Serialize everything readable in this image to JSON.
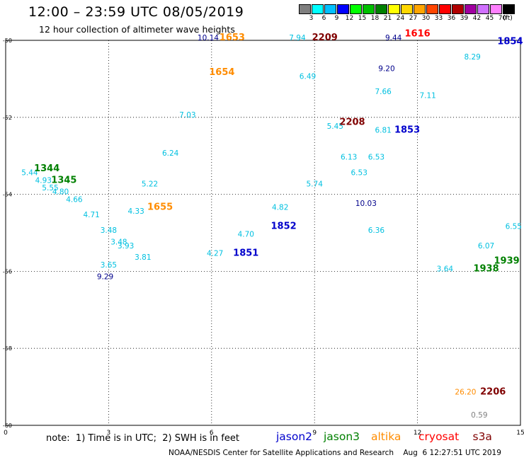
{
  "header": {
    "title": "12:00 – 23:59 UTC 08/05/2019",
    "subtitle": "12 hour collection of altimeter wave heights"
  },
  "scale": {
    "unit": "(ft)",
    "bins": [
      {
        "label": "3",
        "color": "#7f7f7f"
      },
      {
        "label": "6",
        "color": "#00ffff"
      },
      {
        "label": "9",
        "color": "#00bfff"
      },
      {
        "label": "12",
        "color": "#0000ff"
      },
      {
        "label": "15",
        "color": "#00ff00"
      },
      {
        "label": "18",
        "color": "#00c000"
      },
      {
        "label": "21",
        "color": "#008000"
      },
      {
        "label": "24",
        "color": "#ffff00"
      },
      {
        "label": "27",
        "color": "#ffd700"
      },
      {
        "label": "30",
        "color": "#ffa500"
      },
      {
        "label": "33",
        "color": "#ff4500"
      },
      {
        "label": "36",
        "color": "#ff0000"
      },
      {
        "label": "39",
        "color": "#b00000"
      },
      {
        "label": "42",
        "color": "#a000a0"
      },
      {
        "label": "45",
        "color": "#d070ff"
      },
      {
        "label": "70",
        "color": "#ff80ff"
      },
      {
        "label": "",
        "color": "#000000"
      }
    ]
  },
  "colors": {
    "low": "#00c0e0",
    "mid": "#00008b",
    "jason2": "#0000cc",
    "jason3": "#008000",
    "altika": "#ff8c00",
    "cryosat": "#ff0000",
    "s3a": "#800000",
    "grid": "#000000"
  },
  "chart_data": {
    "type": "scatter",
    "title": "12:00 – 23:59 UTC 08/05/2019",
    "subtitle": "12 hour collection of altimeter wave heights",
    "xlim": [
      0,
      15
    ],
    "ylim": [
      -60,
      -50
    ],
    "x_ticks": [
      0,
      3,
      6,
      9,
      12,
      15
    ],
    "y_ticks": [
      -50,
      -52,
      -54,
      -56,
      -58,
      -60
    ],
    "x_tick_labels": [
      "0",
      "3",
      "6",
      "9",
      "12",
      "15"
    ],
    "y_tick_labels": [
      "-50",
      "-52",
      "-54",
      "-56",
      "-58",
      "-60"
    ],
    "grid": true,
    "swh_values": [
      {
        "x": 0.7,
        "y": -53.5,
        "v": "5.44",
        "c": "low"
      },
      {
        "x": 1.1,
        "y": -53.7,
        "v": "4.93",
        "c": "low"
      },
      {
        "x": 1.3,
        "y": -53.9,
        "v": "5.55",
        "c": "low"
      },
      {
        "x": 1.6,
        "y": -54.0,
        "v": "4.80",
        "c": "low"
      },
      {
        "x": 2.0,
        "y": -54.2,
        "v": "4.66",
        "c": "low"
      },
      {
        "x": 2.5,
        "y": -54.6,
        "v": "4.71",
        "c": "low"
      },
      {
        "x": 3.0,
        "y": -55.0,
        "v": "3.48",
        "c": "low"
      },
      {
        "x": 3.5,
        "y": -55.4,
        "v": "3.93",
        "c": "low"
      },
      {
        "x": 4.0,
        "y": -55.7,
        "v": "3.81",
        "c": "low"
      },
      {
        "x": 2.9,
        "y": -56.2,
        "v": "9.29",
        "c": "mid"
      },
      {
        "x": 3.0,
        "y": -55.9,
        "v": "3.65",
        "c": "low"
      },
      {
        "x": 3.3,
        "y": -55.3,
        "v": "3.48",
        "c": "low"
      },
      {
        "x": 3.8,
        "y": -54.5,
        "v": "4.33",
        "c": "low"
      },
      {
        "x": 4.2,
        "y": -53.8,
        "v": "5.22",
        "c": "low"
      },
      {
        "x": 4.8,
        "y": -53.0,
        "v": "6.24",
        "c": "low"
      },
      {
        "x": 5.3,
        "y": -52.0,
        "v": "7.03",
        "c": "low"
      },
      {
        "x": 5.9,
        "y": -50.0,
        "v": "10.14",
        "c": "mid"
      },
      {
        "x": 6.1,
        "y": -55.6,
        "v": "4.27",
        "c": "low"
      },
      {
        "x": 7.0,
        "y": -55.1,
        "v": "4.70",
        "c": "low"
      },
      {
        "x": 8.0,
        "y": -54.4,
        "v": "4.82",
        "c": "low"
      },
      {
        "x": 9.0,
        "y": -53.8,
        "v": "5.74",
        "c": "low"
      },
      {
        "x": 10.0,
        "y": -53.1,
        "v": "6.13",
        "c": "low"
      },
      {
        "x": 11.0,
        "y": -52.4,
        "v": "6.81",
        "c": "low"
      },
      {
        "x": 12.3,
        "y": -51.5,
        "v": "7.11",
        "c": "low"
      },
      {
        "x": 13.6,
        "y": -50.5,
        "v": "8.29",
        "c": "low"
      },
      {
        "x": 8.5,
        "y": -50.0,
        "v": "7.94",
        "c": "low"
      },
      {
        "x": 8.8,
        "y": -51.0,
        "v": "6.49",
        "c": "low"
      },
      {
        "x": 9.6,
        "y": -52.3,
        "v": "5.45",
        "c": "low"
      },
      {
        "x": 10.3,
        "y": -53.5,
        "v": "6.53",
        "c": "low"
      },
      {
        "x": 10.5,
        "y": -54.3,
        "v": "10.03",
        "c": "mid"
      },
      {
        "x": 10.8,
        "y": -55.0,
        "v": "6.36",
        "c": "low"
      },
      {
        "x": 11.3,
        "y": -50.0,
        "v": "9.44",
        "c": "mid"
      },
      {
        "x": 11.1,
        "y": -50.8,
        "v": "9.20",
        "c": "mid"
      },
      {
        "x": 11.0,
        "y": -51.4,
        "v": "7.66",
        "c": "low"
      },
      {
        "x": 10.8,
        "y": -53.1,
        "v": "6.53",
        "c": "low"
      },
      {
        "x": 12.8,
        "y": -56.0,
        "v": "3.64",
        "c": "low"
      },
      {
        "x": 14.0,
        "y": -55.4,
        "v": "6.07",
        "c": "low"
      },
      {
        "x": 14.8,
        "y": -54.9,
        "v": "6.55",
        "c": "low"
      },
      {
        "x": 13.4,
        "y": -59.2,
        "v": "26.20",
        "c": "altika"
      },
      {
        "x": 13.8,
        "y": -59.8,
        "v": "0.59",
        "c": "gray"
      }
    ],
    "pass_times": [
      {
        "x": 1.2,
        "y": -53.4,
        "t": "1344",
        "sat": "jason3"
      },
      {
        "x": 1.7,
        "y": -53.7,
        "t": "1345",
        "sat": "jason3"
      },
      {
        "x": 6.6,
        "y": -50.0,
        "t": "1653",
        "sat": "altika"
      },
      {
        "x": 6.3,
        "y": -50.9,
        "t": "1654",
        "sat": "altika"
      },
      {
        "x": 4.5,
        "y": -54.4,
        "t": "1655",
        "sat": "altika"
      },
      {
        "x": 7.0,
        "y": -55.6,
        "t": "1851",
        "sat": "jason2"
      },
      {
        "x": 8.1,
        "y": -54.9,
        "t": "1852",
        "sat": "jason2"
      },
      {
        "x": 11.7,
        "y": -52.4,
        "t": "1853",
        "sat": "jason2"
      },
      {
        "x": 14.7,
        "y": -50.1,
        "t": "1854",
        "sat": "jason2"
      },
      {
        "x": 9.3,
        "y": -50.0,
        "t": "2209",
        "sat": "s3a"
      },
      {
        "x": 10.1,
        "y": -52.2,
        "t": "2208",
        "sat": "s3a"
      },
      {
        "x": 12.0,
        "y": -49.9,
        "t": "1616",
        "sat": "cryosat"
      },
      {
        "x": 14.6,
        "y": -55.8,
        "t": "1939",
        "sat": "jason3"
      },
      {
        "x": 14.0,
        "y": -56.0,
        "t": "1938",
        "sat": "jason3"
      },
      {
        "x": 14.2,
        "y": -59.2,
        "t": "2206",
        "sat": "s3a"
      }
    ]
  },
  "legend": {
    "note": "note:  1) Time is in UTC;  2) SWH is in feet",
    "satellites": [
      {
        "name": "jason2",
        "color_key": "jason2"
      },
      {
        "name": "jason3",
        "color_key": "jason3"
      },
      {
        "name": "altika",
        "color_key": "altika"
      },
      {
        "name": "cryosat",
        "color_key": "cryosat"
      },
      {
        "name": "s3a",
        "color_key": "s3a"
      }
    ]
  },
  "footer": "NOAA/NESDIS Center for Satellite Applications and Research    Aug  6 12:27:51 UTC 2019"
}
